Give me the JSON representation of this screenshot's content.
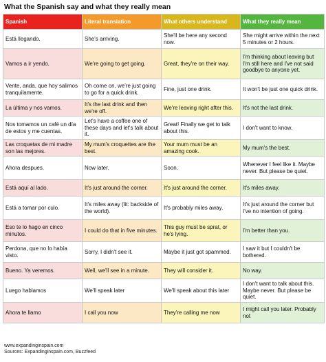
{
  "title": "What the Spanish say and what they really mean",
  "colors": {
    "col_spanish_header": "#e8231f",
    "col_literal_header": "#f39a2a",
    "col_others_header": "#d7b71b",
    "col_mean_header": "#55b63f"
  },
  "headers": [
    "Spanish",
    "Literal translation",
    "What others understand",
    "What they really mean"
  ],
  "rows": [
    {
      "spanish": "Está llegando.",
      "literal": "She's arriving.",
      "others": "She'll be here any second now.",
      "mean": "She might arrive within the next 5 minutes or 2 hours."
    },
    {
      "spanish": "Vamos a ir yendo.",
      "literal": "We're going to get going.",
      "others": "Great, they're on their way.",
      "mean": "I'm thinking about leaving but I'm still here and I've not said goodbye to anyone yet."
    },
    {
      "spanish": "Vente, anda, que hoy salimos tranquilamente.",
      "literal": "Oh come on, we're just going to go for a quick drink.",
      "others": "Fine, just one drink.",
      "mean": "It won't be just one quick drink."
    },
    {
      "spanish": "La última y nos vamos.",
      "literal": "It's the last drink and then we're off.",
      "others": "We're leaving right after this.",
      "mean": "It's not the last drink."
    },
    {
      "spanish": "Nos tomamos un café un día de estos y me cuentas.",
      "literal": "Let's have a coffee one of these days and let's talk about it.",
      "others": "Great! Finally we get to talk about this.",
      "mean": "I don't want to know."
    },
    {
      "spanish": "Las croquetas de mi madre son las mejores.",
      "literal": "My mum's croquettes are the best.",
      "others": "Your mum must be an amazing cook.",
      "mean": "My mum's the best."
    },
    {
      "spanish": "Ahora despues.",
      "literal": "Now later.",
      "others": "Soon.",
      "mean": "Whenever I feel like it. Maybe never. But please be quiet."
    },
    {
      "spanish": "Está aquí al lado.",
      "literal": "It's just around the corner.",
      "others": "It's just around the corner.",
      "mean": "It's miles away."
    },
    {
      "spanish": "Está a tomar por culo.",
      "literal": "It's miles away (lit: backside of the world).",
      "others": "It's probably miles away.",
      "mean": "It's just around the corner but I've no intention of going."
    },
    {
      "spanish": "Eso te lo hago en cinco minutos.",
      "literal": "I could do that in five minutes.",
      "others": "This guy must be sprat, or he's lying.",
      "mean": "I'm better than you."
    },
    {
      "spanish": "Perdona, que no lo había visto.",
      "literal": "Sorry, I didn't see it.",
      "others": "Maybe it just got spammed.",
      "mean": "I saw it but I couldn't be bothered."
    },
    {
      "spanish": "Bueno. Ya veremos.",
      "literal": "Well, we'll see in a minute.",
      "others": "They will consider it.",
      "mean": "No way."
    },
    {
      "spanish": "Luego hablamos",
      "literal": "We'll speak later",
      "others": "We'll speak about this later",
      "mean": "I don't want to talk about this. Maybe never. But please be quiet."
    },
    {
      "spanish": "Ahora te llamo",
      "literal": "I call you now",
      "others": "They're calling me now",
      "mean": "I might call you later. Probably not"
    }
  ],
  "footer": {
    "line1": "www.expandinginspain.com",
    "line2": "Sources: Expandinginspain.com, Buzzfeed"
  }
}
